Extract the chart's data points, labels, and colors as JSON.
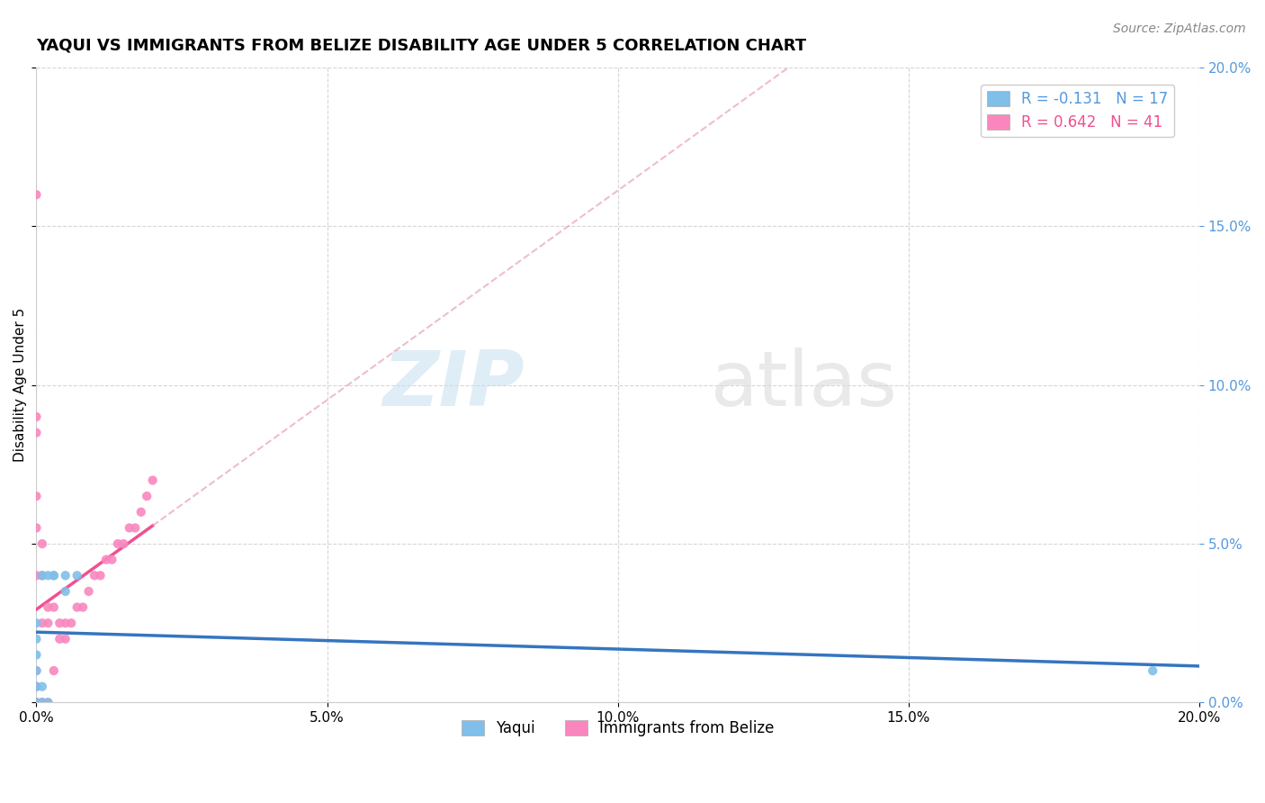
{
  "title": "YAQUI VS IMMIGRANTS FROM BELIZE DISABILITY AGE UNDER 5 CORRELATION CHART",
  "source_text": "Source: ZipAtlas.com",
  "ylabel": "Disability Age Under 5",
  "legend_series": [
    {
      "label": "R = -0.131   N = 17",
      "color": "#6baed6"
    },
    {
      "label": "R = 0.642   N = 41",
      "color": "#f768a1"
    }
  ],
  "legend_names": [
    "Yaqui",
    "Immigrants from Belize"
  ],
  "yaqui_color": "#7fbfea",
  "belize_color": "#f987be",
  "trendline_yaqui_color": "#3575c0",
  "trendline_belize_color": "#f05090",
  "background_color": "#ffffff",
  "watermark_zip": "ZIP",
  "watermark_atlas": "atlas",
  "xmin": 0.0,
  "xmax": 0.2,
  "ymin": 0.0,
  "ymax": 0.2,
  "yaqui_x": [
    0.0,
    0.0,
    0.0,
    0.0,
    0.0,
    0.0,
    0.001,
    0.001,
    0.001,
    0.002,
    0.002,
    0.003,
    0.003,
    0.005,
    0.005,
    0.007,
    0.192
  ],
  "yaqui_y": [
    0.0,
    0.005,
    0.01,
    0.015,
    0.02,
    0.025,
    0.0,
    0.005,
    0.04,
    0.0,
    0.04,
    0.04,
    0.04,
    0.04,
    0.035,
    0.04,
    0.01
  ],
  "belize_x": [
    0.0,
    0.0,
    0.0,
    0.0,
    0.0,
    0.0,
    0.0,
    0.0,
    0.0,
    0.0,
    0.0,
    0.0,
    0.001,
    0.001,
    0.001,
    0.001,
    0.001,
    0.002,
    0.002,
    0.002,
    0.003,
    0.003,
    0.004,
    0.004,
    0.005,
    0.005,
    0.006,
    0.007,
    0.008,
    0.009,
    0.01,
    0.011,
    0.012,
    0.013,
    0.014,
    0.015,
    0.016,
    0.017,
    0.018,
    0.019,
    0.02
  ],
  "belize_y": [
    0.0,
    0.0,
    0.0,
    0.0,
    0.005,
    0.01,
    0.04,
    0.055,
    0.065,
    0.085,
    0.09,
    0.16,
    0.0,
    0.0,
    0.025,
    0.04,
    0.05,
    0.0,
    0.025,
    0.03,
    0.01,
    0.03,
    0.02,
    0.025,
    0.02,
    0.025,
    0.025,
    0.03,
    0.03,
    0.035,
    0.04,
    0.04,
    0.045,
    0.045,
    0.05,
    0.05,
    0.055,
    0.055,
    0.06,
    0.065,
    0.07
  ],
  "grid_color": "#cccccc",
  "title_fontsize": 13,
  "axis_fontsize": 11,
  "tick_fontsize": 11,
  "source_fontsize": 10,
  "legend_text_color_1": "#5599dd",
  "legend_text_color_2": "#f05090"
}
